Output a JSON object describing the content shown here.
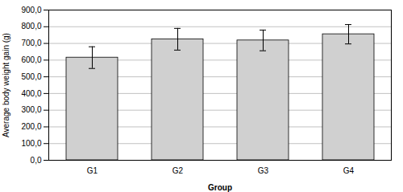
{
  "chart_data": {
    "type": "bar",
    "categories": [
      "G1",
      "G2",
      "G3",
      "G4"
    ],
    "values": [
      615,
      725,
      718,
      755
    ],
    "errors_lower": [
      65,
      65,
      62,
      58
    ],
    "errors_upper": [
      65,
      65,
      62,
      58
    ],
    "color": "#d0d0d0",
    "xlabel": "Group",
    "ylabel": "Average body weight gain (g)",
    "ylim": [
      0,
      900
    ],
    "yticks": [
      {
        "value": 0,
        "label": "0,0"
      },
      {
        "value": 100,
        "label": "100,0"
      },
      {
        "value": 200,
        "label": "200,0"
      },
      {
        "value": 300,
        "label": "300,0"
      },
      {
        "value": 400,
        "label": "400,0"
      },
      {
        "value": 500,
        "label": "500,0"
      },
      {
        "value": 600,
        "label": "600,0"
      },
      {
        "value": 700,
        "label": "700,0"
      },
      {
        "value": 800,
        "label": "800,0"
      },
      {
        "value": 900,
        "label": "900,0"
      }
    ],
    "grid": true
  }
}
